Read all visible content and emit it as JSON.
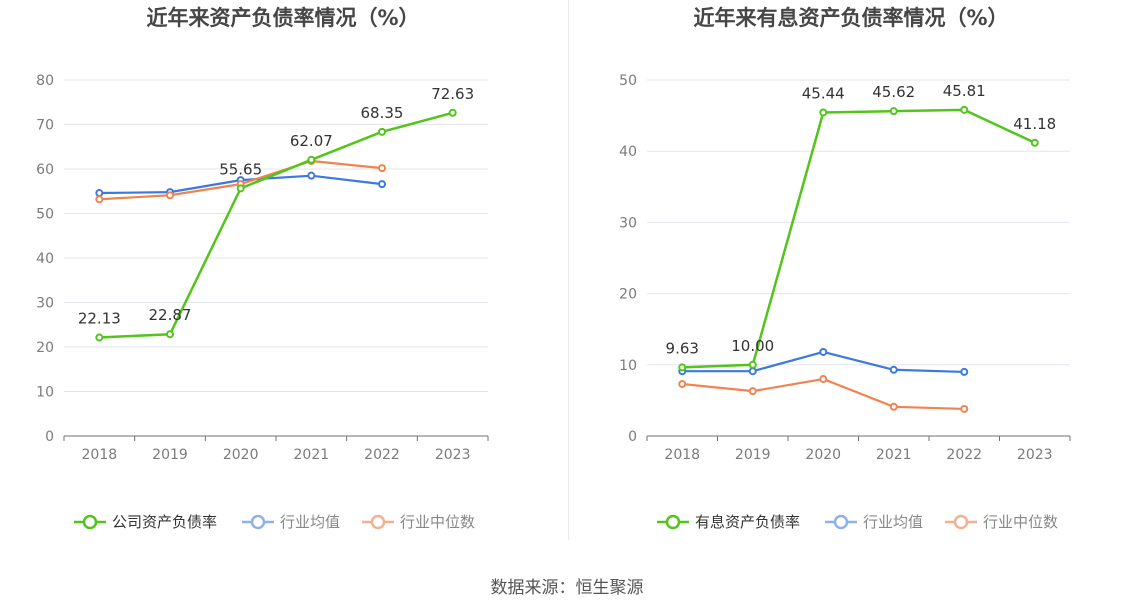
{
  "source": "数据来源：恒生聚源",
  "chart_data": [
    {
      "type": "line",
      "title": "近年来资产负债率情况（%）",
      "categories": [
        "2018",
        "2019",
        "2020",
        "2021",
        "2022",
        "2023"
      ],
      "ylim": [
        0,
        80
      ],
      "yticks": [
        "0",
        "10",
        "20",
        "30",
        "40",
        "50",
        "60",
        "70",
        "80"
      ],
      "grid": true,
      "legend_position": "bottom",
      "series": [
        {
          "name": "公司资产负债率",
          "color": "#52c41a",
          "values": [
            22.13,
            22.87,
            55.65,
            62.07,
            68.35,
            72.63
          ],
          "labels": [
            "22.13",
            "22.87",
            "55.65",
            "62.07",
            "68.35",
            "72.63"
          ]
        },
        {
          "name": "行业均值",
          "color": "#3b78e0",
          "values": [
            54.6,
            54.8,
            57.5,
            58.5,
            56.6,
            null
          ]
        },
        {
          "name": "行业中位数",
          "color": "#f08350",
          "values": [
            53.2,
            54.1,
            56.6,
            61.8,
            60.2,
            null
          ]
        }
      ]
    },
    {
      "type": "line",
      "title": "近年来有息资产负债率情况（%）",
      "categories": [
        "2018",
        "2019",
        "2020",
        "2021",
        "2022",
        "2023"
      ],
      "ylim": [
        0,
        50
      ],
      "yticks": [
        "0",
        "10",
        "20",
        "30",
        "40",
        "50"
      ],
      "grid": true,
      "legend_position": "bottom",
      "series": [
        {
          "name": "有息资产负债率",
          "color": "#52c41a",
          "values": [
            9.63,
            10.0,
            45.44,
            45.62,
            45.81,
            41.18
          ],
          "labels": [
            "9.63",
            "10.00",
            "45.44",
            "45.62",
            "45.81",
            "41.18"
          ]
        },
        {
          "name": "行业均值",
          "color": "#3b78e0",
          "values": [
            9.1,
            9.1,
            11.8,
            9.3,
            9.0,
            null
          ]
        },
        {
          "name": "行业中位数",
          "color": "#f08350",
          "values": [
            7.3,
            6.3,
            8.0,
            4.1,
            3.8,
            null
          ]
        }
      ]
    }
  ]
}
